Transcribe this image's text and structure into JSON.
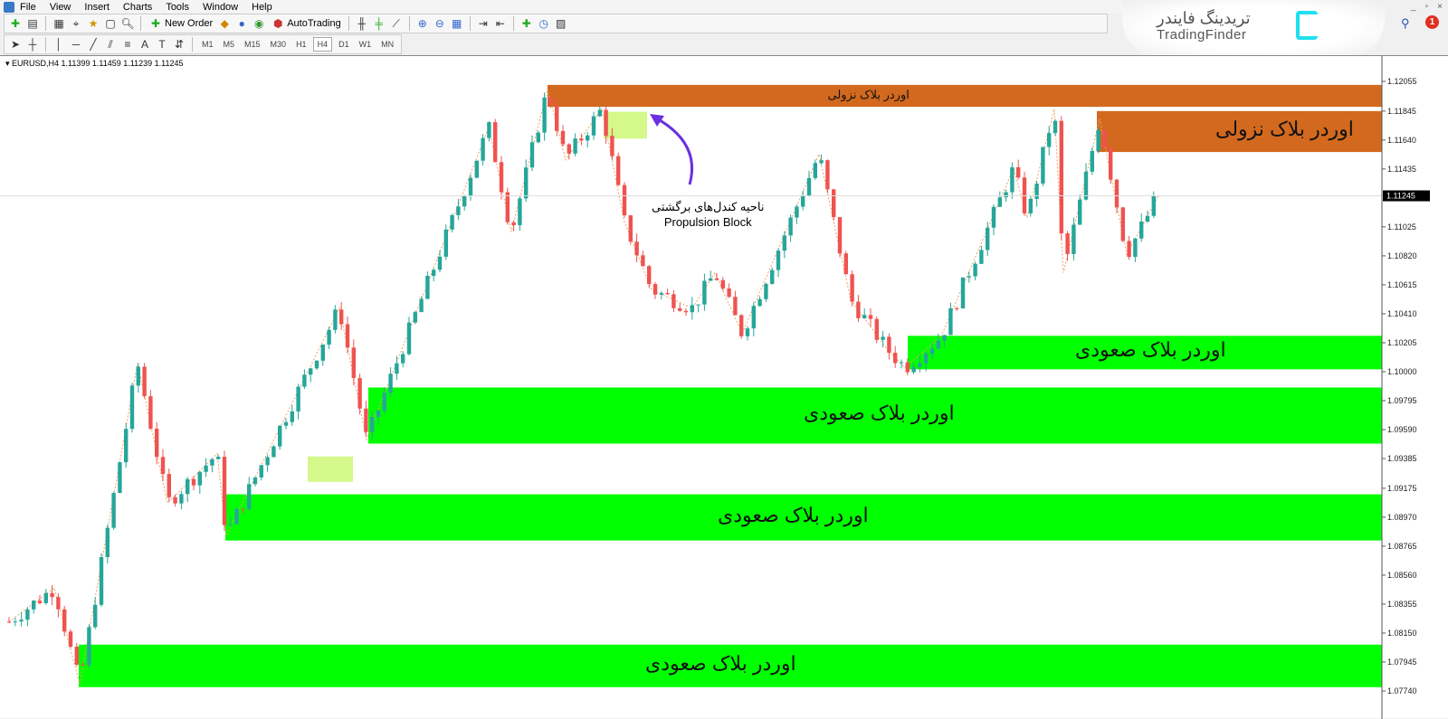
{
  "menu": [
    "File",
    "View",
    "Insert",
    "Charts",
    "Tools",
    "Window",
    "Help"
  ],
  "toolbar": {
    "new_order": "New Order",
    "autotrading": "AutoTrading",
    "timeframes": [
      "M1",
      "M5",
      "M15",
      "M30",
      "H1",
      "H4",
      "D1",
      "W1",
      "MN"
    ],
    "active_timeframe": "H4"
  },
  "logo": {
    "fa": "تریدینگ فایندر",
    "en": "TradingFinder"
  },
  "notifications": "1",
  "chart": {
    "header": "EURUSD,H4  1.11399 1.11459 1.11239 1.11245",
    "annotation_fa": "ناحیه کندل‌های برگشتی",
    "annotation_en": "Propulsion Block"
  },
  "chart_data": {
    "type": "candlestick",
    "symbol": "EURUSD",
    "timeframe": "H4",
    "current_price": "1.11245",
    "ylim": [
      1.0774,
      1.12055
    ],
    "yticks": [
      "1.12055",
      "1.11845",
      "1.11640",
      "1.11435",
      "1.11025",
      "1.10820",
      "1.10615",
      "1.10410",
      "1.10205",
      "1.10000",
      "1.09795",
      "1.09590",
      "1.09385",
      "1.09175",
      "1.08970",
      "1.08765",
      "1.08560",
      "1.08355",
      "1.08150",
      "1.07945",
      "1.07740"
    ],
    "colors": {
      "bull": "#26a69a",
      "bear": "#ef5350",
      "bearish_ob": "#d2691e",
      "bullish_ob": "#00ff00",
      "propulsion": "#d4f98a",
      "zigzag": "#f0a060",
      "arrow": "#6a30e0"
    },
    "swing_prices": [
      1.0823,
      1.0847,
      1.0779,
      1.1006,
      1.0907,
      1.0942,
      1.0884,
      1.1045,
      1.0952,
      1.1173,
      1.1099,
      1.12,
      1.115,
      1.1186,
      1.1106,
      1.1058,
      1.1045,
      1.107,
      1.1027,
      1.1154,
      1.1051,
      1.1016,
      1.1003,
      1.1025,
      1.1144,
      1.1109,
      1.1186,
      1.107,
      1.1179,
      1.1083,
      1.11245
    ],
    "zones": [
      {
        "type": "bearish",
        "label": "اوردر بلاک نزولی",
        "top": 1.1203,
        "bottom": 1.11875
      },
      {
        "type": "bearish",
        "label": "اوردر بلاک نزولی",
        "top": 1.11845,
        "bottom": 1.11555
      },
      {
        "type": "bullish",
        "label": "اوردر بلاک صعودی",
        "top": 1.10254,
        "bottom": 1.10017
      },
      {
        "type": "bullish",
        "label": "اوردر بلاک صعودی",
        "top": 1.09888,
        "bottom": 1.09491
      },
      {
        "type": "bullish",
        "label": "اوردر بلاک صعودی",
        "top": 1.09132,
        "bottom": 1.08805
      },
      {
        "type": "bullish",
        "label": "اوردر بلاک صعودی",
        "top": 1.08068,
        "bottom": 1.07767
      },
      {
        "type": "propulsion",
        "top": 1.094,
        "bottom": 1.0922
      },
      {
        "type": "propulsion",
        "top": 1.1184,
        "bottom": 1.1165
      }
    ]
  }
}
